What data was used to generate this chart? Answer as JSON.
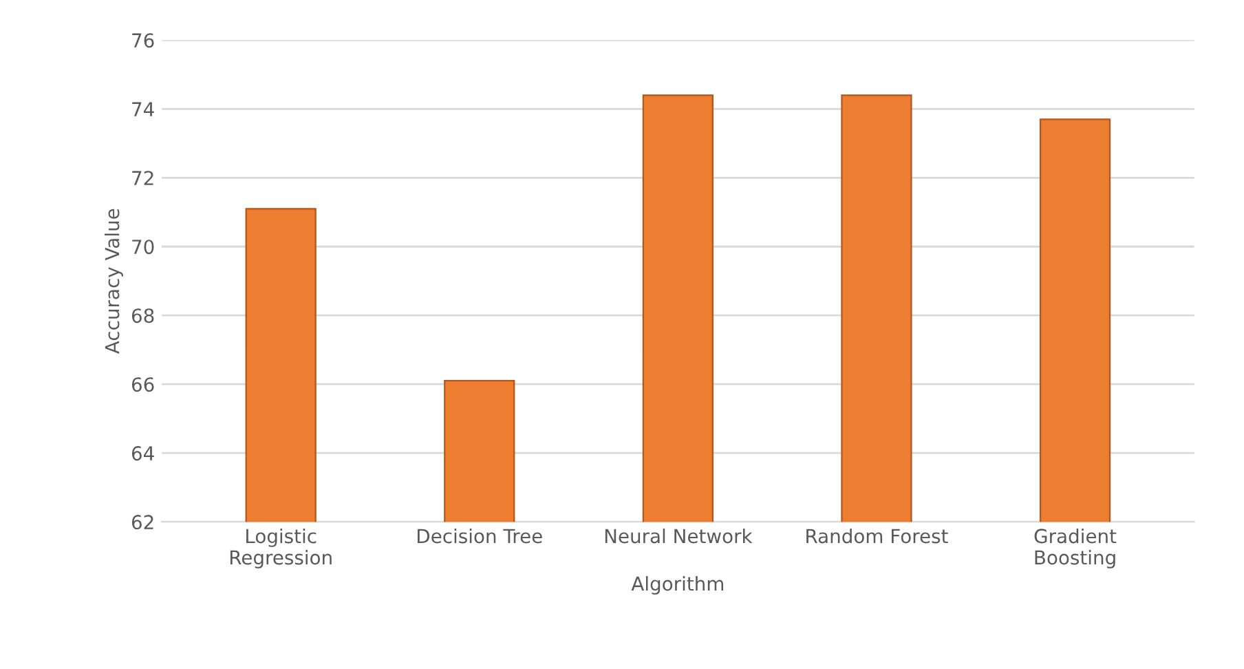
{
  "chart_data": {
    "type": "bar",
    "categories": [
      "Logistic\nRegression",
      "Decision Tree",
      "Neural Network",
      "Random Forest",
      "Gradient\nBoosting"
    ],
    "values": [
      71.1,
      66.1,
      74.4,
      74.4,
      73.7
    ],
    "color": "#ed7d31",
    "xlabel": "Algorithm",
    "ylabel": "Accuracy Value",
    "ylim": [
      62,
      76
    ],
    "yticks": [
      62,
      64,
      66,
      68,
      70,
      72,
      74,
      76
    ],
    "grid": "y"
  }
}
